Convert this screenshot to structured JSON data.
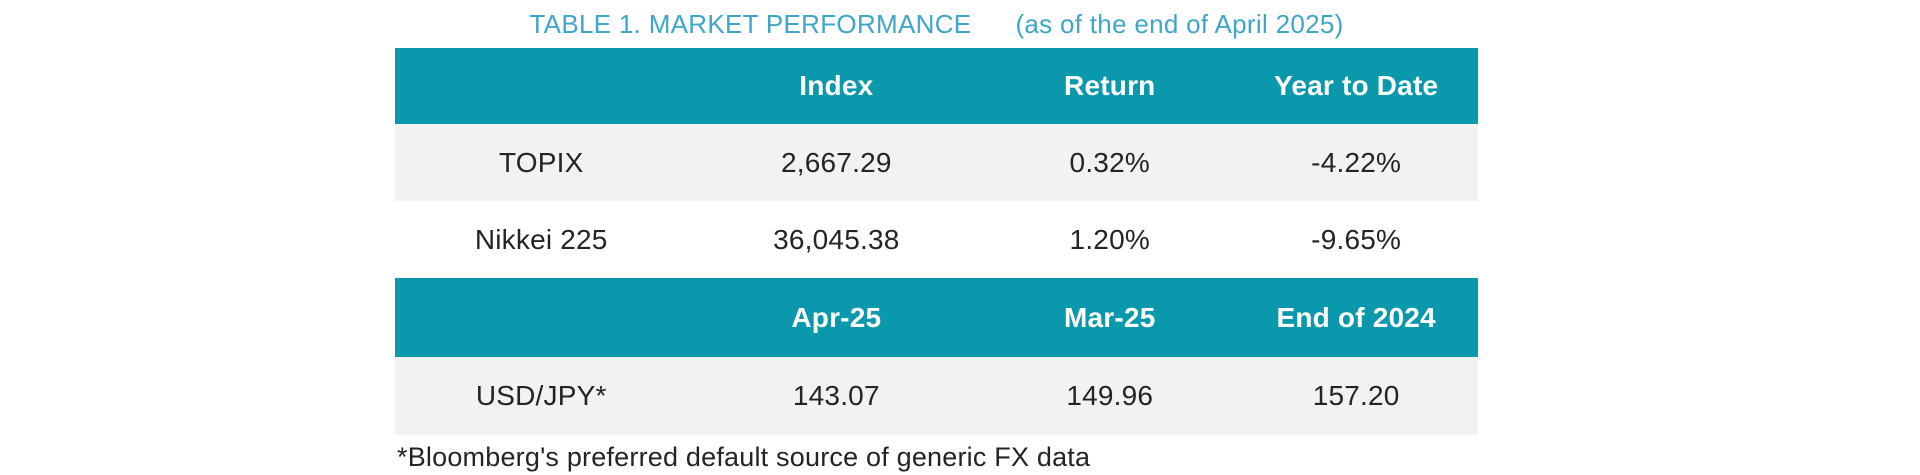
{
  "title": {
    "main": "TABLE 1. MARKET PERFORMANCE",
    "as_of": "(as of the end of April 2025)"
  },
  "indices_table": {
    "headers": [
      "",
      "Index",
      "Return",
      "Year to Date"
    ],
    "rows": [
      {
        "name": "TOPIX",
        "index": "2,667.29",
        "return": "0.32%",
        "year_to_date": "-4.22%"
      },
      {
        "name": "Nikkei 225",
        "index": "36,045.38",
        "return": "1.20%",
        "year_to_date": "-9.65%"
      }
    ]
  },
  "fx_table": {
    "headers": [
      "",
      "Apr-25",
      "Mar-25",
      "End of 2024"
    ],
    "rows": [
      {
        "name": "USD/JPY*",
        "apr_25": "143.07",
        "mar_25": "149.96",
        "end_of_2024": "157.20"
      }
    ]
  },
  "footnote": "*Bloomberg's preferred default source of generic FX data",
  "colors": {
    "header_teal": "#0998ac",
    "title_blue": "#3ea6c8",
    "stripe_gray": "#f2f2f2",
    "body_text": "#272324",
    "header_text": "#ffffff"
  }
}
